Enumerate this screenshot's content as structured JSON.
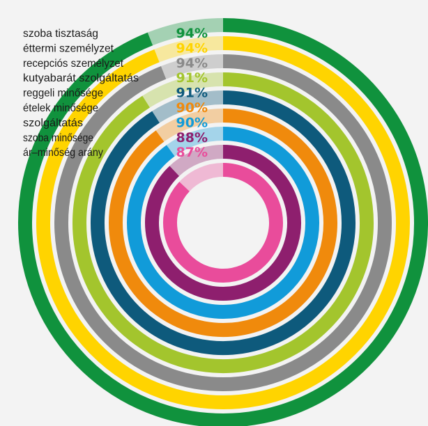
{
  "chart_data": {
    "type": "radial-bar",
    "categories": [
      "szoba tisztaság",
      "éttermi személyzet",
      "recepciós személyzet",
      "kutyabarát szolgáltatás",
      "reggeli minősége",
      "ételek minősége",
      "szolgáltatás",
      "szoba minősége",
      "ár–minőség arány"
    ],
    "values": [
      94,
      94,
      94,
      91,
      91,
      90,
      90,
      88,
      87
    ],
    "value_labels": [
      "94%",
      "94%",
      "94%",
      "91%",
      "91%",
      "90%",
      "90%",
      "88%",
      "87%"
    ],
    "colors": [
      "#10923d",
      "#ffd400",
      "#8a8a8a",
      "#a3c52d",
      "#0e5a7c",
      "#f08a0c",
      "#119bd9",
      "#8e1f6e",
      "#e94c9b"
    ],
    "max": 100,
    "title": "",
    "background": "#f3f3f3"
  }
}
